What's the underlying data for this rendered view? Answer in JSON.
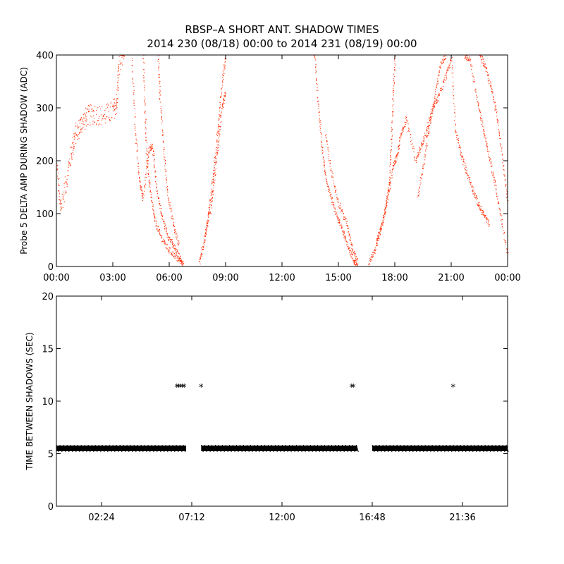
{
  "title_line1": "RBSP–A SHORT ANT. SHADOW TIMES",
  "title_line2": "2014 230 (08/18) 00:00 to 2014 231 (08/19) 00:00",
  "colors": {
    "amp": "#ff2a00",
    "gaps": "#000000",
    "axis": "#000000",
    "background": "#ffffff"
  },
  "chart_data": [
    {
      "type": "scatter",
      "ylabel": "Probe 5 DELTA AMP DURING SHADOW (ADC)",
      "xlabel": "",
      "xlim": [
        0,
        24
      ],
      "ylim": [
        0,
        400
      ],
      "x_ticks": [
        "00:00",
        "03:00",
        "06:00",
        "09:00",
        "12:00",
        "15:00",
        "18:00",
        "21:00",
        "00:00"
      ],
      "x_tick_values": [
        0,
        3,
        6,
        9,
        12,
        15,
        18,
        21,
        24
      ],
      "y_ticks": [
        0,
        100,
        200,
        300,
        400
      ],
      "marker_color": "#ff2a00",
      "series": [
        {
          "values": [
            [
              0.0,
              190
            ],
            [
              0.2,
              110
            ],
            [
              0.5,
              160
            ],
            [
              0.8,
              220
            ],
            [
              1.0,
              250
            ],
            [
              1.3,
              270
            ],
            [
              1.6,
              285
            ],
            [
              2.0,
              290
            ],
            [
              2.5,
              285
            ],
            [
              3.0,
              295
            ],
            [
              3.2,
              310
            ],
            [
              3.3,
              380
            ],
            [
              3.6,
              400
            ]
          ]
        },
        {
          "values": [
            [
              4.0,
              395
            ],
            [
              4.2,
              250
            ],
            [
              4.4,
              165
            ],
            [
              4.6,
              130
            ],
            [
              4.9,
              220
            ],
            [
              5.1,
              230
            ],
            [
              5.3,
              150
            ],
            [
              5.6,
              95
            ],
            [
              5.9,
              60
            ],
            [
              6.2,
              40
            ],
            [
              6.5,
              20
            ],
            [
              6.7,
              5
            ]
          ]
        },
        {
          "values": [
            [
              4.6,
              400
            ],
            [
              4.7,
              300
            ],
            [
              4.8,
              200
            ],
            [
              5.0,
              140
            ],
            [
              5.2,
              90
            ],
            [
              5.5,
              60
            ],
            [
              5.9,
              35
            ],
            [
              6.3,
              20
            ],
            [
              6.8,
              3
            ]
          ]
        },
        {
          "values": [
            [
              5.4,
              400
            ],
            [
              5.5,
              320
            ],
            [
              5.7,
              220
            ],
            [
              5.9,
              140
            ],
            [
              6.2,
              80
            ],
            [
              6.5,
              40
            ]
          ]
        },
        {
          "values": [
            [
              7.6,
              10
            ],
            [
              7.8,
              40
            ],
            [
              8.0,
              80
            ],
            [
              8.2,
              130
            ],
            [
              8.4,
              200
            ],
            [
              8.6,
              270
            ],
            [
              8.8,
              350
            ],
            [
              9.0,
              400
            ]
          ]
        },
        {
          "values": [
            [
              7.9,
              60
            ],
            [
              8.2,
              110
            ],
            [
              8.4,
              170
            ],
            [
              8.6,
              240
            ],
            [
              8.8,
              300
            ],
            [
              9.0,
              330
            ]
          ]
        },
        {
          "values": [
            [
              13.7,
              410
            ],
            [
              13.9,
              310
            ],
            [
              14.1,
              230
            ],
            [
              14.3,
              170
            ],
            [
              14.6,
              130
            ],
            [
              14.9,
              95
            ],
            [
              15.2,
              70
            ],
            [
              15.5,
              40
            ],
            [
              15.8,
              10
            ],
            [
              16.0,
              5
            ]
          ]
        },
        {
          "values": [
            [
              14.3,
              250
            ],
            [
              14.6,
              180
            ],
            [
              15.0,
              120
            ],
            [
              15.4,
              85
            ],
            [
              15.7,
              40
            ],
            [
              16.0,
              10
            ]
          ]
        },
        {
          "values": [
            [
              16.6,
              5
            ],
            [
              16.9,
              30
            ],
            [
              17.2,
              65
            ],
            [
              17.5,
              110
            ],
            [
              17.7,
              160
            ],
            [
              17.8,
              240
            ],
            [
              17.9,
              320
            ],
            [
              18.0,
              400
            ]
          ]
        },
        {
          "values": [
            [
              17.0,
              45
            ],
            [
              17.3,
              80
            ],
            [
              17.6,
              130
            ],
            [
              17.9,
              190
            ],
            [
              18.1,
              210
            ],
            [
              18.3,
              250
            ],
            [
              18.6,
              280
            ],
            [
              19.1,
              200
            ],
            [
              19.4,
              230
            ],
            [
              19.7,
              260
            ],
            [
              20.0,
              300
            ],
            [
              20.3,
              320
            ],
            [
              20.7,
              360
            ],
            [
              21.0,
              395
            ]
          ]
        },
        {
          "values": [
            [
              19.2,
              130
            ],
            [
              19.5,
              190
            ],
            [
              19.8,
              260
            ],
            [
              20.1,
              320
            ],
            [
              20.4,
              380
            ],
            [
              20.7,
              400
            ]
          ]
        },
        {
          "values": [
            [
              21.0,
              400
            ],
            [
              21.2,
              260
            ],
            [
              21.5,
              215
            ],
            [
              21.8,
              180
            ],
            [
              22.1,
              150
            ],
            [
              22.4,
              120
            ],
            [
              22.7,
              100
            ],
            [
              23.0,
              80
            ]
          ]
        },
        {
          "values": [
            [
              21.7,
              400
            ],
            [
              22.0,
              390
            ],
            [
              22.4,
              310
            ],
            [
              22.7,
              260
            ],
            [
              23.0,
              210
            ],
            [
              23.3,
              160
            ],
            [
              23.6,
              100
            ],
            [
              24.0,
              20
            ]
          ]
        },
        {
          "values": [
            [
              22.5,
              400
            ],
            [
              22.8,
              380
            ],
            [
              23.1,
              340
            ],
            [
              23.4,
              290
            ],
            [
              23.7,
              210
            ],
            [
              24.0,
              120
            ]
          ]
        }
      ]
    },
    {
      "type": "scatter",
      "ylabel": "TIME BETWEEN SHADOWS (SEC)",
      "xlabel": "",
      "xlim": [
        0,
        24
      ],
      "ylim": [
        0,
        20
      ],
      "x_ticks": [
        "02:24",
        "07:12",
        "12:00",
        "16:48",
        "21:36"
      ],
      "x_tick_values": [
        2.4,
        7.2,
        12.0,
        16.8,
        21.6
      ],
      "y_ticks": [
        0,
        5,
        10,
        15,
        20
      ],
      "marker": "*",
      "marker_color": "#000000",
      "baseline": {
        "y": 5.5,
        "segments": [
          [
            0.0,
            6.9
          ],
          [
            7.7,
            16.0
          ],
          [
            16.8,
            24.0
          ]
        ]
      },
      "points": [
        [
          6.4,
          11.0
        ],
        [
          6.5,
          11.0
        ],
        [
          6.6,
          11.0
        ],
        [
          6.7,
          11.0
        ],
        [
          6.8,
          11.0
        ],
        [
          7.7,
          11.0
        ],
        [
          15.7,
          11.0
        ],
        [
          15.8,
          11.0
        ],
        [
          21.1,
          11.0
        ]
      ]
    }
  ]
}
